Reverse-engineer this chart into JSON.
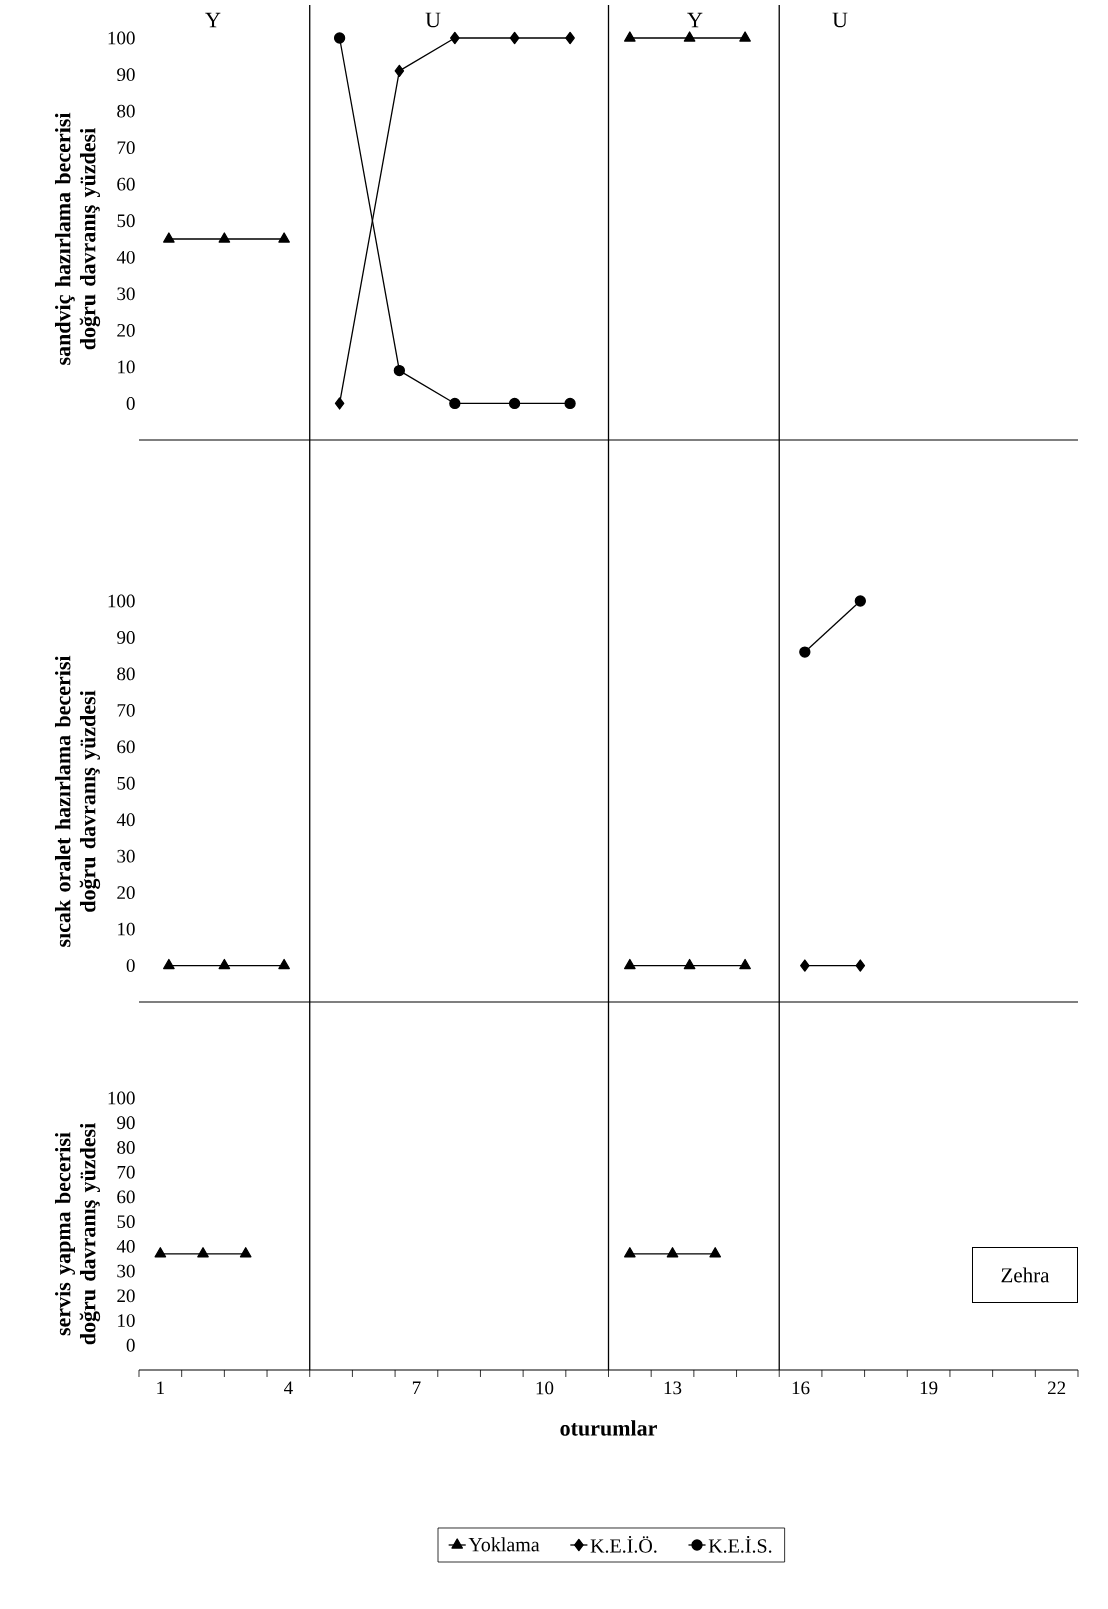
{
  "chart_data": [
    {
      "type": "line",
      "ylabel": "sandviç hazırlama becerisi doğru davranış yüzdesi",
      "series": [
        {
          "name": "Yoklama",
          "color": "#000000",
          "marker": "triangle",
          "x": [
            1.2,
            2.5,
            3.9,
            8,
            12.0,
            13.4,
            14.7
          ],
          "values": [
            45,
            45,
            45,
            null,
            100,
            100,
            100
          ]
        },
        {
          "name": "K.E.İ.Ö.",
          "color": "#000000",
          "marker": "diamond",
          "x": [
            5.2,
            6.6,
            7.9,
            9.3,
            10.6
          ],
          "values": [
            0,
            91,
            100,
            100,
            100
          ]
        },
        {
          "name": "K.E.İ.S.",
          "color": "#000000",
          "marker": "circle",
          "x": [
            5.2,
            6.6,
            7.9,
            9.3,
            10.6
          ],
          "values": [
            100,
            9,
            0,
            0,
            0
          ]
        }
      ],
      "xlim": [
        0.5,
        22.5
      ],
      "ylim": [
        -10,
        100
      ],
      "yticks": [
        0,
        10,
        20,
        30,
        40,
        50,
        60,
        70,
        80,
        90,
        100
      ],
      "tick_labels": "y",
      "legend": "bottom",
      "line_style": "solid",
      "annotations": [
        "Y",
        "U",
        "Y",
        "U"
      ]
    },
    {
      "type": "line",
      "ylabel": "sıcak oralet hazırlama becerisi doğru davranış yüzdesi",
      "series": [
        {
          "color": "#000000",
          "marker": "triangle",
          "x": [
            1.2,
            2.5,
            3.9,
            8,
            12.0,
            13.4,
            14.7
          ],
          "values": [
            0,
            0,
            0,
            null,
            0,
            0,
            0
          ]
        },
        {
          "color": "#000000",
          "marker": "diamond",
          "x": [
            16.1,
            17.4
          ],
          "values": [
            0,
            0
          ]
        },
        {
          "color": "#000000",
          "marker": "circle",
          "x": [
            16.1,
            17.4
          ],
          "values": [
            86,
            100
          ]
        }
      ],
      "xlim": [
        0.5,
        22.5
      ],
      "ylim": [
        -10,
        100
      ],
      "yticks": [
        0,
        10,
        20,
        30,
        40,
        50,
        60,
        70,
        80,
        90,
        100
      ],
      "tick_labels": "y",
      "line_style": "solid"
    },
    {
      "type": "line",
      "ylabel": "servis yapma becerisi doğru davranış yüzdesi",
      "xlabel": "oturumlar",
      "series": [
        {
          "color": "#000000",
          "marker": "triangle",
          "x": [
            1,
            2,
            3,
            4,
            12,
            13,
            14
          ],
          "values": [
            37,
            37,
            37,
            null,
            37,
            37,
            37
          ]
        }
      ],
      "xlim": [
        0.5,
        22.5
      ],
      "xticks": [
        1,
        4,
        7,
        10,
        13,
        16,
        19,
        22,
        {
          "value": 0.5,
          "label": null
        },
        {
          "value": 1.5,
          "label": null
        },
        {
          "value": 2.5,
          "label": null
        },
        {
          "value": 3.5,
          "label": null
        },
        {
          "value": 4.5,
          "label": null
        },
        {
          "value": 5.5,
          "label": null
        },
        {
          "value": 6.5,
          "label": null
        },
        {
          "value": 7.5,
          "label": null
        },
        {
          "value": 8.5,
          "label": null
        },
        {
          "value": 9.5,
          "label": null
        },
        {
          "value": 10.5,
          "label": null
        },
        {
          "value": 11.5,
          "label": null
        },
        {
          "value": 12.5,
          "label": null
        },
        {
          "value": 13.5,
          "label": null
        },
        {
          "value": 14.5,
          "label": null
        },
        {
          "value": 15.5,
          "label": null
        },
        {
          "value": 16.5,
          "label": null
        },
        {
          "value": 17.5,
          "label": null
        },
        {
          "value": 18.5,
          "label": null
        },
        {
          "value": 19.5,
          "label": null
        },
        {
          "value": 20.5,
          "label": null
        },
        {
          "value": 21.5,
          "label": null
        },
        {
          "value": 22.5,
          "label": null
        }
      ],
      "ylim": [
        -10,
        100
      ],
      "yticks": [
        0,
        10,
        20,
        30,
        40,
        50,
        60,
        70,
        80,
        90,
        100
      ],
      "line_style": "solid",
      "ref_lines": [
        {
          "axis": "x",
          "value": 4.5
        },
        {
          "axis": "x",
          "value": 11.5
        },
        {
          "axis": "x",
          "value": 15.5
        }
      ],
      "annotations": [
        "Zehra"
      ]
    }
  ]
}
